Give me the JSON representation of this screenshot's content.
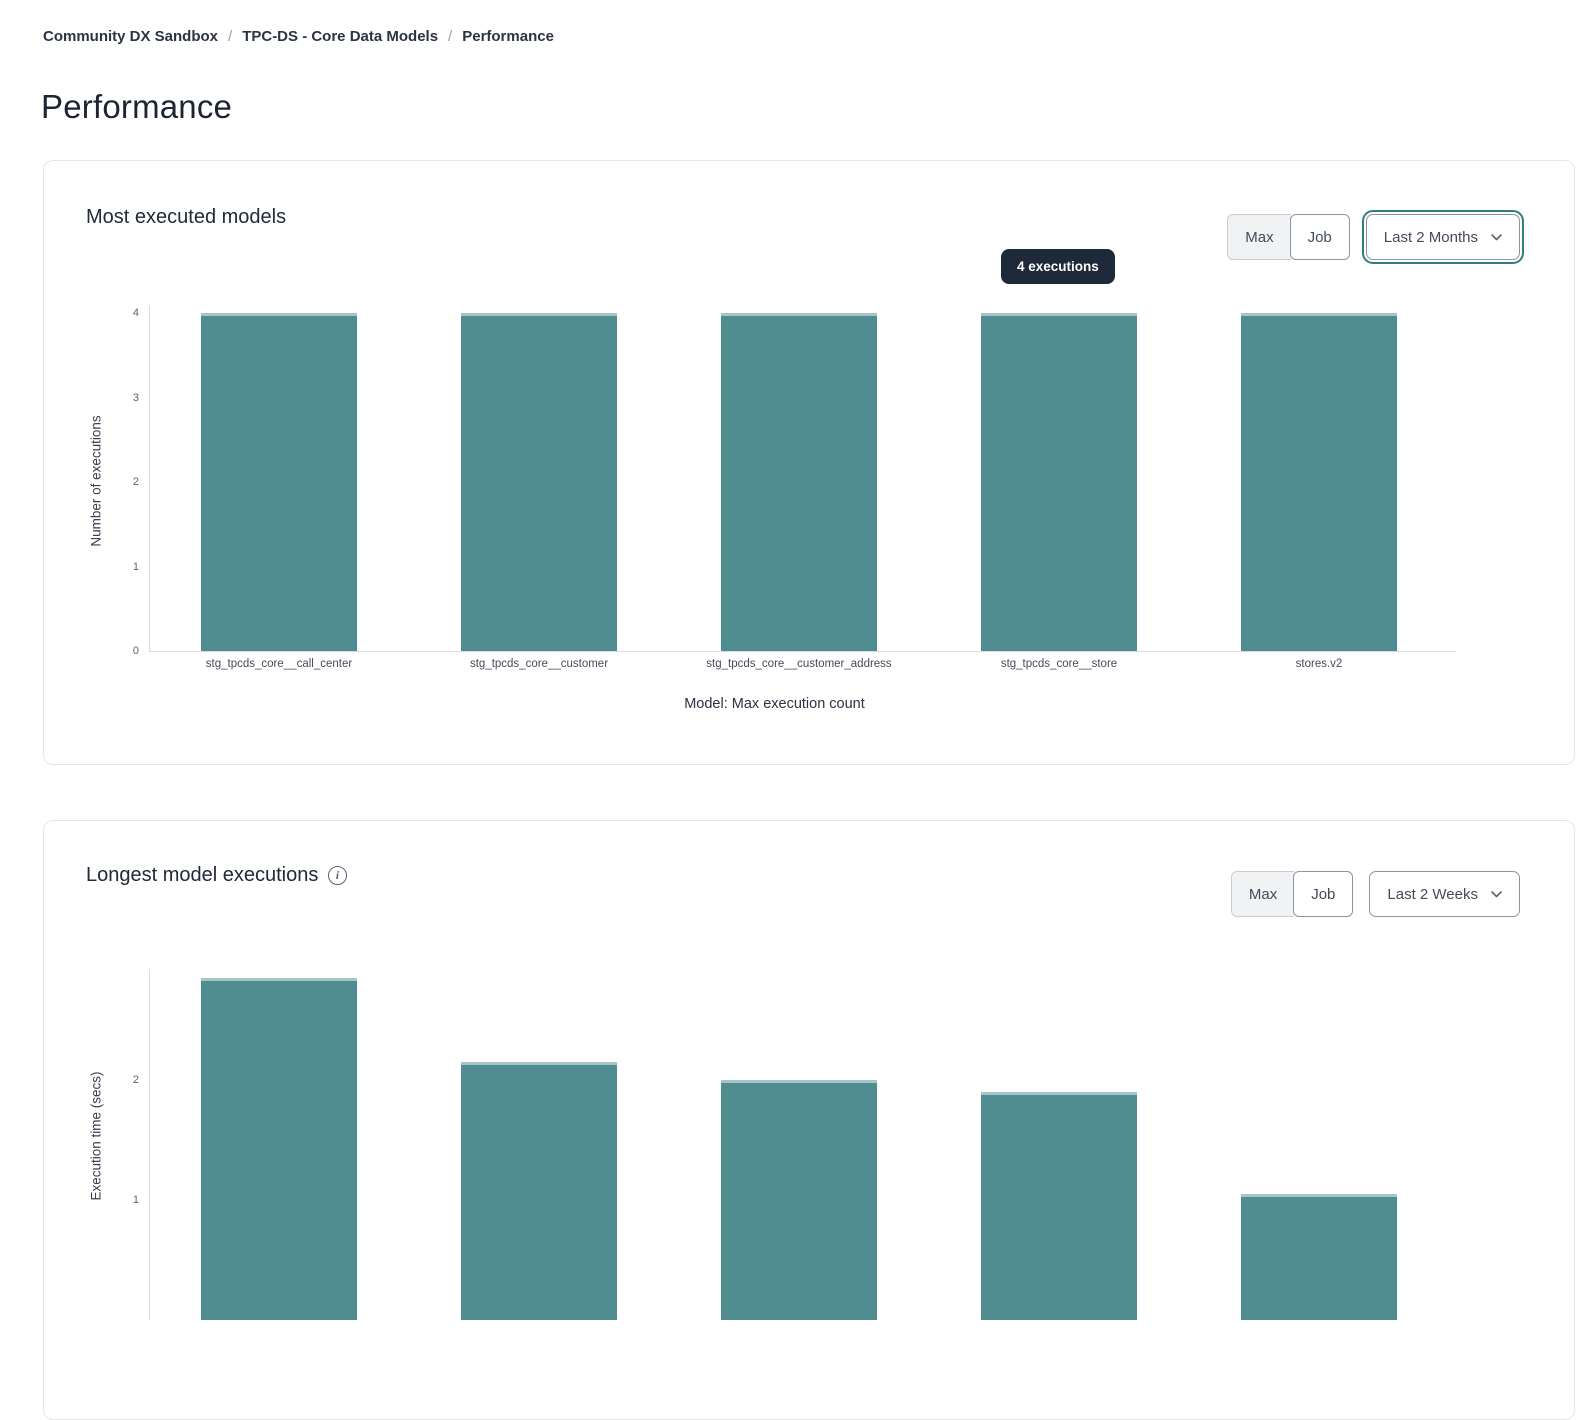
{
  "breadcrumb": {
    "separator": "/",
    "items": [
      {
        "label": "Community DX Sandbox"
      },
      {
        "label": "TPC-DS - Core Data Models"
      },
      {
        "label": "Performance"
      }
    ]
  },
  "page": {
    "title": "Performance"
  },
  "colors": {
    "bar": "#4f8d91",
    "bar_top_edge": "#a5c5c7",
    "tooltip_bg": "#1e2939",
    "focus_ring": "#357c80"
  },
  "cards": [
    {
      "title": "Most executed models",
      "toggle": {
        "options": [
          "Max",
          "Job"
        ],
        "selected": "Max"
      },
      "dropdown": {
        "value": "Last 2 Months"
      },
      "tooltip": "4 executions",
      "chart_data": {
        "type": "bar",
        "categories": [
          "stg_tpcds_core__call_center",
          "stg_tpcds_core__customer",
          "stg_tpcds_core__customer_address",
          "stg_tpcds_core__store",
          "stores.v2"
        ],
        "values": [
          4,
          4,
          4,
          4,
          4
        ],
        "title": "Most executed models",
        "xlabel": "Model: Max execution count",
        "ylabel": "Number of executions",
        "yticks": [
          0,
          1,
          2,
          3,
          4
        ],
        "ylim": [
          0,
          4
        ],
        "grid": false,
        "legend": false,
        "bar_color": "#4f8d91"
      }
    },
    {
      "title": "Longest model executions",
      "toggle": {
        "options": [
          "Max",
          "Job"
        ],
        "selected": "Max"
      },
      "dropdown": {
        "value": "Last 2 Weeks"
      },
      "chart_data": {
        "type": "bar",
        "categories": [
          "",
          "",
          "",
          "",
          ""
        ],
        "values": [
          2.85,
          2.15,
          2.0,
          1.9,
          1.05
        ],
        "title": "Longest model executions",
        "xlabel": "",
        "ylabel": "Execution time (secs)",
        "yticks": [
          1,
          2
        ],
        "ylim": [
          0,
          3
        ],
        "grid": false,
        "legend": false,
        "bar_color": "#4f8d91"
      }
    }
  ]
}
